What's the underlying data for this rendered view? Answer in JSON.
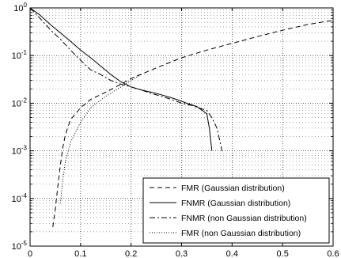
{
  "chart_data": {
    "type": "line",
    "title": "",
    "xlabel": "",
    "ylabel": "",
    "xlim": [
      0,
      0.6
    ],
    "ylim": [
      1e-05,
      1
    ],
    "yscale": "log",
    "grid": true,
    "legend_position": "bottom-right",
    "x_ticks": [
      0,
      0.1,
      0.2,
      0.3,
      0.4,
      0.5,
      0.6
    ],
    "x_tick_labels": [
      "0",
      "0.1",
      "0.2",
      "0.3",
      "0.4",
      "0.5",
      "0.6"
    ],
    "y_ticks": [
      {
        "value": 1,
        "base": "10",
        "exp": "0"
      },
      {
        "value": 0.1,
        "base": "10",
        "exp": "-1"
      },
      {
        "value": 0.01,
        "base": "10",
        "exp": "-2"
      },
      {
        "value": 0.001,
        "base": "10",
        "exp": "-3"
      },
      {
        "value": 0.0001,
        "base": "10",
        "exp": "-4"
      },
      {
        "value": 1e-05,
        "base": "10",
        "exp": "-5"
      }
    ],
    "series": [
      {
        "name": "FMR (Gaussian distribution)",
        "dash": "6,4",
        "points": [
          [
            0.045,
            2.5e-05
          ],
          [
            0.05,
            6e-05
          ],
          [
            0.055,
            0.00018
          ],
          [
            0.06,
            0.0005
          ],
          [
            0.065,
            0.0012
          ],
          [
            0.07,
            0.0022
          ],
          [
            0.08,
            0.0045
          ],
          [
            0.1,
            0.008
          ],
          [
            0.12,
            0.012
          ],
          [
            0.15,
            0.017
          ],
          [
            0.18,
            0.025
          ],
          [
            0.2,
            0.033
          ],
          [
            0.25,
            0.055
          ],
          [
            0.3,
            0.09
          ],
          [
            0.35,
            0.13
          ],
          [
            0.4,
            0.18
          ],
          [
            0.45,
            0.25
          ],
          [
            0.5,
            0.34
          ],
          [
            0.55,
            0.45
          ],
          [
            0.6,
            0.55
          ]
        ]
      },
      {
        "name": "FNMR (Gaussian distribution)",
        "dash": "",
        "points": [
          [
            0,
            1
          ],
          [
            0.02,
            0.7
          ],
          [
            0.04,
            0.45
          ],
          [
            0.06,
            0.3
          ],
          [
            0.08,
            0.2
          ],
          [
            0.1,
            0.13
          ],
          [
            0.12,
            0.09
          ],
          [
            0.14,
            0.06
          ],
          [
            0.16,
            0.04
          ],
          [
            0.18,
            0.028
          ],
          [
            0.2,
            0.022
          ],
          [
            0.22,
            0.019
          ],
          [
            0.24,
            0.017
          ],
          [
            0.26,
            0.015
          ],
          [
            0.28,
            0.013
          ],
          [
            0.3,
            0.011
          ],
          [
            0.31,
            0.01
          ],
          [
            0.33,
            0.0085
          ],
          [
            0.35,
            0.006
          ],
          [
            0.355,
            0.003
          ],
          [
            0.36,
            0.001
          ]
        ]
      },
      {
        "name": "FNMR (non Gaussian distribution)",
        "dash": "7,3,2,3",
        "points": [
          [
            0,
            1
          ],
          [
            0.02,
            0.6
          ],
          [
            0.04,
            0.35
          ],
          [
            0.06,
            0.22
          ],
          [
            0.08,
            0.13
          ],
          [
            0.1,
            0.08
          ],
          [
            0.12,
            0.05
          ],
          [
            0.14,
            0.04
          ],
          [
            0.16,
            0.03
          ],
          [
            0.18,
            0.025
          ],
          [
            0.2,
            0.022
          ],
          [
            0.22,
            0.019
          ],
          [
            0.24,
            0.016
          ],
          [
            0.26,
            0.014
          ],
          [
            0.28,
            0.012
          ],
          [
            0.3,
            0.01
          ],
          [
            0.32,
            0.009
          ],
          [
            0.35,
            0.007
          ],
          [
            0.36,
            0.005
          ],
          [
            0.37,
            0.003
          ],
          [
            0.38,
            0.001
          ]
        ]
      },
      {
        "name": "FMR (non Gaussian distribution)",
        "dash": "1,2",
        "points": [
          [
            0.06,
            8e-05
          ],
          [
            0.065,
            0.00025
          ],
          [
            0.07,
            0.0006
          ],
          [
            0.08,
            0.0015
          ],
          [
            0.1,
            0.004
          ],
          [
            0.12,
            0.008
          ],
          [
            0.15,
            0.014
          ],
          [
            0.18,
            0.022
          ],
          [
            0.2,
            0.03
          ],
          [
            0.22,
            0.04
          ]
        ]
      }
    ]
  }
}
